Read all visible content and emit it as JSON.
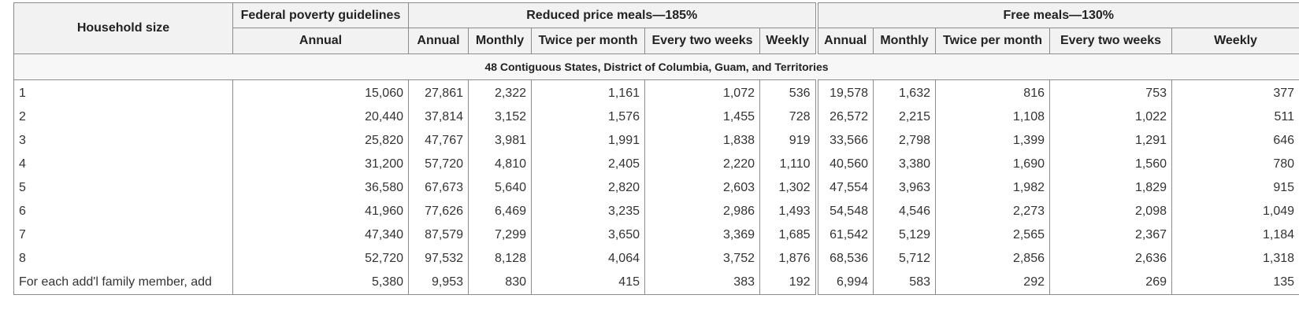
{
  "table": {
    "headers": {
      "household_size": "Household size",
      "federal_group": "Federal poverty guidelines",
      "reduced_group": "Reduced price meals—185%",
      "free_group": "Free meals—130%",
      "federal_cols": [
        "Annual"
      ],
      "reduced_cols": [
        "Annual",
        "Monthly",
        "Twice per month",
        "Every two weeks",
        "Weekly"
      ],
      "free_cols": [
        "Annual",
        "Monthly",
        "Twice per month",
        "Every two weeks",
        "Weekly"
      ]
    },
    "region_label": "48 Contiguous States, District of Columbia, Guam, and Territories",
    "rows": [
      {
        "size": "1",
        "federal": "15,060",
        "reduced": [
          "27,861",
          "2,322",
          "1,161",
          "1,072",
          "536"
        ],
        "free": [
          "19,578",
          "1,632",
          "816",
          "753",
          "377"
        ]
      },
      {
        "size": "2",
        "federal": "20,440",
        "reduced": [
          "37,814",
          "3,152",
          "1,576",
          "1,455",
          "728"
        ],
        "free": [
          "26,572",
          "2,215",
          "1,108",
          "1,022",
          "511"
        ]
      },
      {
        "size": "3",
        "federal": "25,820",
        "reduced": [
          "47,767",
          "3,981",
          "1,991",
          "1,838",
          "919"
        ],
        "free": [
          "33,566",
          "2,798",
          "1,399",
          "1,291",
          "646"
        ]
      },
      {
        "size": "4",
        "federal": "31,200",
        "reduced": [
          "57,720",
          "4,810",
          "2,405",
          "2,220",
          "1,110"
        ],
        "free": [
          "40,560",
          "3,380",
          "1,690",
          "1,560",
          "780"
        ]
      },
      {
        "size": "5",
        "federal": "36,580",
        "reduced": [
          "67,673",
          "5,640",
          "2,820",
          "2,603",
          "1,302"
        ],
        "free": [
          "47,554",
          "3,963",
          "1,982",
          "1,829",
          "915"
        ]
      },
      {
        "size": "6",
        "federal": "41,960",
        "reduced": [
          "77,626",
          "6,469",
          "3,235",
          "2,986",
          "1,493"
        ],
        "free": [
          "54,548",
          "4,546",
          "2,273",
          "2,098",
          "1,049"
        ]
      },
      {
        "size": "7",
        "federal": "47,340",
        "reduced": [
          "87,579",
          "7,299",
          "3,650",
          "3,369",
          "1,685"
        ],
        "free": [
          "61,542",
          "5,129",
          "2,565",
          "2,367",
          "1,184"
        ]
      },
      {
        "size": "8",
        "federal": "52,720",
        "reduced": [
          "97,532",
          "8,128",
          "4,064",
          "3,752",
          "1,876"
        ],
        "free": [
          "68,536",
          "5,712",
          "2,856",
          "2,636",
          "1,318"
        ]
      },
      {
        "size": "For each add'l family member, add",
        "federal": "5,380",
        "reduced": [
          "9,953",
          "830",
          "415",
          "383",
          "192"
        ],
        "free": [
          "6,994",
          "583",
          "292",
          "269",
          "135"
        ]
      }
    ]
  }
}
